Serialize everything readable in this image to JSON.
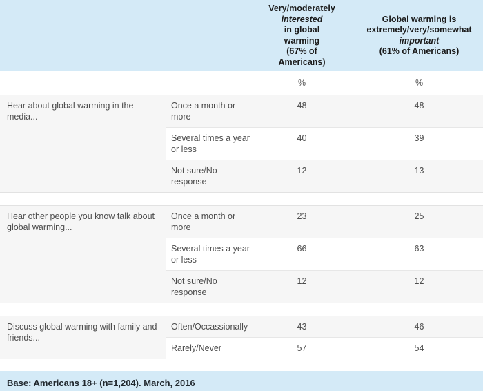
{
  "columns": {
    "interested": {
      "pre": "Very/moderately",
      "italic": "interested",
      "post": "in global warming",
      "note": "(67% of Americans)"
    },
    "important": {
      "pre": "Global warming is extremely/very/somewhat",
      "italic": "important",
      "note": "(61% of Americans)"
    }
  },
  "percent_symbol": "%",
  "groups": [
    {
      "label": "Hear about global warming in the media...",
      "rows": [
        {
          "answer": "Once a month or more",
          "interested": "48",
          "important": "48"
        },
        {
          "answer": "Several times a year or less",
          "interested": "40",
          "important": "39"
        },
        {
          "answer": "Not sure/No response",
          "interested": "12",
          "important": "13"
        }
      ]
    },
    {
      "label": "Hear other people you know talk about global warming...",
      "rows": [
        {
          "answer": "Once a month or more",
          "interested": "23",
          "important": "25"
        },
        {
          "answer": "Several times a year or less",
          "interested": "66",
          "important": "63"
        },
        {
          "answer": "Not sure/No response",
          "interested": "12",
          "important": "12"
        }
      ]
    },
    {
      "label": "Discuss global warming with family and friends...",
      "rows": [
        {
          "answer": "Often/Occassionally",
          "interested": "43",
          "important": "46"
        },
        {
          "answer": "Rarely/Never",
          "interested": "57",
          "important": "54"
        }
      ]
    }
  ],
  "footer": {
    "base_note": "Base: Americans 18+ (n=1,204). March, 2016"
  },
  "colors": {
    "header_bg": "#d4eaf7",
    "footer_bg": "#d4eaf7",
    "row_alt_bg": "#f6f6f6",
    "divider": "#e2e2e2",
    "header_text": "#1b1b1b",
    "body_text": "#4c4c4c"
  }
}
